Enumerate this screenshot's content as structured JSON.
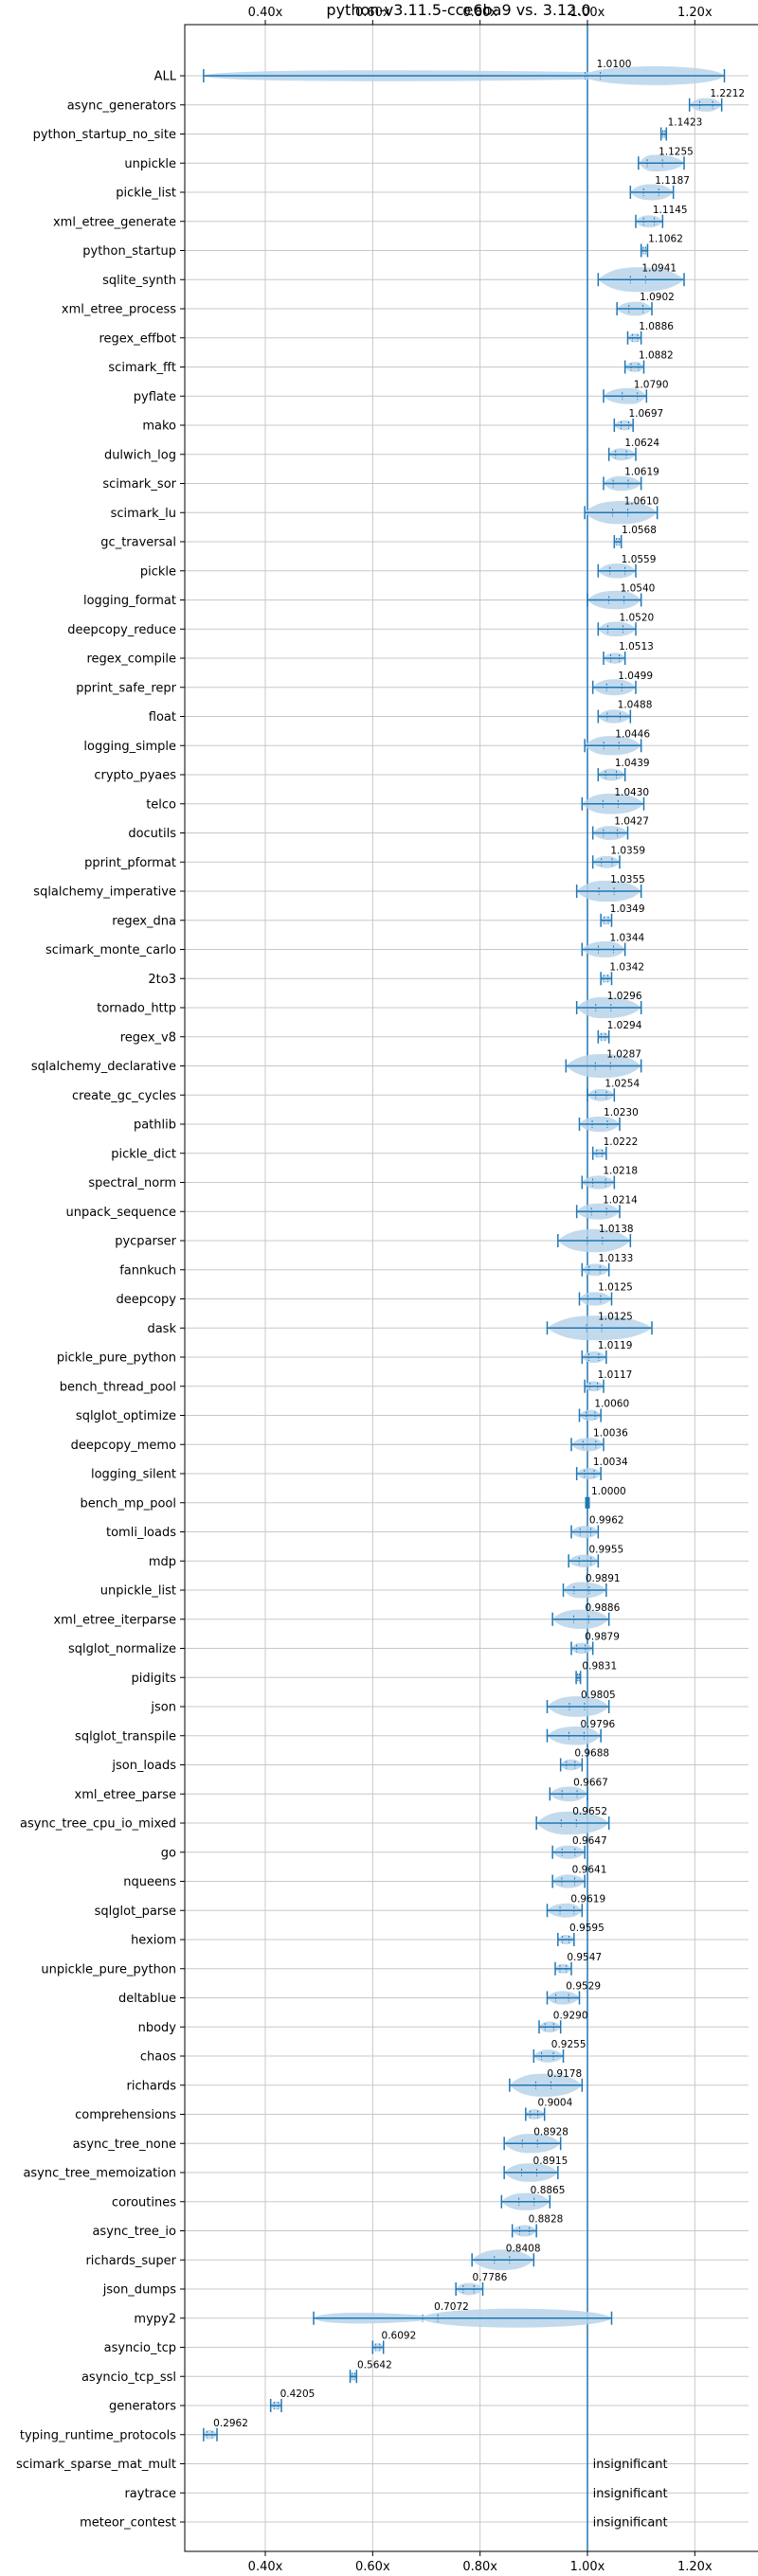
{
  "chart_data": {
    "type": "violin",
    "title": "python-v3.11.5-cce6ba9 vs. 3.12.0",
    "x_ticks": [
      0.4,
      0.6,
      0.8,
      1.0,
      1.2
    ],
    "x_tick_labels": [
      "0.40x",
      "0.60x",
      "0.80x",
      "1.00x",
      "1.20x"
    ],
    "xlim": [
      0.25,
      1.3
    ],
    "reference_line": 1.0,
    "grid": true,
    "colors": {
      "fill": "#b9d3ea",
      "line": "#1f77b4"
    },
    "benchmarks": [
      {
        "name": "ALL",
        "label": "1.0100",
        "median": 1.01,
        "lo": 0.285,
        "hi": 1.255,
        "whi": 1.16
      },
      {
        "name": "async_generators",
        "label": "1.2212",
        "median": 1.2212,
        "lo": 1.19,
        "hi": 1.25
      },
      {
        "name": "python_startup_no_site",
        "label": "1.1423",
        "median": 1.1423,
        "lo": 1.137,
        "hi": 1.147
      },
      {
        "name": "unpickle",
        "label": "1.1255",
        "median": 1.1255,
        "lo": 1.095,
        "hi": 1.18
      },
      {
        "name": "pickle_list",
        "label": "1.1187",
        "median": 1.1187,
        "lo": 1.08,
        "hi": 1.16
      },
      {
        "name": "xml_etree_generate",
        "label": "1.1145",
        "median": 1.1145,
        "lo": 1.09,
        "hi": 1.14
      },
      {
        "name": "python_startup",
        "label": "1.1062",
        "median": 1.1062,
        "lo": 1.1,
        "hi": 1.112
      },
      {
        "name": "sqlite_synth",
        "label": "1.0941",
        "median": 1.0941,
        "lo": 1.02,
        "hi": 1.18
      },
      {
        "name": "xml_etree_process",
        "label": "1.0902",
        "median": 1.0902,
        "lo": 1.055,
        "hi": 1.12
      },
      {
        "name": "regex_effbot",
        "label": "1.0886",
        "median": 1.0886,
        "lo": 1.075,
        "hi": 1.1
      },
      {
        "name": "scimark_fft",
        "label": "1.0882",
        "median": 1.0882,
        "lo": 1.07,
        "hi": 1.105
      },
      {
        "name": "pyflate",
        "label": "1.0790",
        "median": 1.079,
        "lo": 1.03,
        "hi": 1.11
      },
      {
        "name": "mako",
        "label": "1.0697",
        "median": 1.0697,
        "lo": 1.05,
        "hi": 1.085
      },
      {
        "name": "dulwich_log",
        "label": "1.0624",
        "median": 1.0624,
        "lo": 1.04,
        "hi": 1.09
      },
      {
        "name": "scimark_sor",
        "label": "1.0619",
        "median": 1.0619,
        "lo": 1.03,
        "hi": 1.1
      },
      {
        "name": "scimark_lu",
        "label": "1.0610",
        "median": 1.061,
        "lo": 0.995,
        "hi": 1.13
      },
      {
        "name": "gc_traversal",
        "label": "1.0568",
        "median": 1.0568,
        "lo": 1.05,
        "hi": 1.063
      },
      {
        "name": "pickle",
        "label": "1.0559",
        "median": 1.0559,
        "lo": 1.02,
        "hi": 1.09
      },
      {
        "name": "logging_format",
        "label": "1.0540",
        "median": 1.054,
        "lo": 1.0,
        "hi": 1.1
      },
      {
        "name": "deepcopy_reduce",
        "label": "1.0520",
        "median": 1.052,
        "lo": 1.02,
        "hi": 1.09
      },
      {
        "name": "regex_compile",
        "label": "1.0513",
        "median": 1.0513,
        "lo": 1.03,
        "hi": 1.07
      },
      {
        "name": "pprint_safe_repr",
        "label": "1.0499",
        "median": 1.0499,
        "lo": 1.01,
        "hi": 1.09
      },
      {
        "name": "float",
        "label": "1.0488",
        "median": 1.0488,
        "lo": 1.02,
        "hi": 1.08
      },
      {
        "name": "logging_simple",
        "label": "1.0446",
        "median": 1.0446,
        "lo": 0.995,
        "hi": 1.1
      },
      {
        "name": "crypto_pyaes",
        "label": "1.0439",
        "median": 1.0439,
        "lo": 1.02,
        "hi": 1.07
      },
      {
        "name": "telco",
        "label": "1.0430",
        "median": 1.043,
        "lo": 0.99,
        "hi": 1.105
      },
      {
        "name": "docutils",
        "label": "1.0427",
        "median": 1.0427,
        "lo": 1.01,
        "hi": 1.075
      },
      {
        "name": "pprint_pformat",
        "label": "1.0359",
        "median": 1.0359,
        "lo": 1.01,
        "hi": 1.06
      },
      {
        "name": "sqlalchemy_imperative",
        "label": "1.0355",
        "median": 1.0355,
        "lo": 0.98,
        "hi": 1.1
      },
      {
        "name": "regex_dna",
        "label": "1.0349",
        "median": 1.0349,
        "lo": 1.025,
        "hi": 1.045
      },
      {
        "name": "scimark_monte_carlo",
        "label": "1.0344",
        "median": 1.0344,
        "lo": 0.99,
        "hi": 1.07
      },
      {
        "name": "2to3",
        "label": "1.0342",
        "median": 1.0342,
        "lo": 1.025,
        "hi": 1.045
      },
      {
        "name": "tornado_http",
        "label": "1.0296",
        "median": 1.0296,
        "lo": 0.98,
        "hi": 1.1
      },
      {
        "name": "regex_v8",
        "label": "1.0294",
        "median": 1.0294,
        "lo": 1.02,
        "hi": 1.04
      },
      {
        "name": "sqlalchemy_declarative",
        "label": "1.0287",
        "median": 1.0287,
        "lo": 0.96,
        "hi": 1.1
      },
      {
        "name": "create_gc_cycles",
        "label": "1.0254",
        "median": 1.0254,
        "lo": 1.0,
        "hi": 1.05
      },
      {
        "name": "pathlib",
        "label": "1.0230",
        "median": 1.023,
        "lo": 0.985,
        "hi": 1.06
      },
      {
        "name": "pickle_dict",
        "label": "1.0222",
        "median": 1.0222,
        "lo": 1.01,
        "hi": 1.035
      },
      {
        "name": "spectral_norm",
        "label": "1.0218",
        "median": 1.0218,
        "lo": 0.99,
        "hi": 1.05
      },
      {
        "name": "unpack_sequence",
        "label": "1.0214",
        "median": 1.0214,
        "lo": 0.98,
        "hi": 1.06
      },
      {
        "name": "pycparser",
        "label": "1.0138",
        "median": 1.0138,
        "lo": 0.945,
        "hi": 1.08
      },
      {
        "name": "fannkuch",
        "label": "1.0133",
        "median": 1.0133,
        "lo": 0.99,
        "hi": 1.04
      },
      {
        "name": "deepcopy",
        "label": "1.0125",
        "median": 1.0125,
        "lo": 0.985,
        "hi": 1.045
      },
      {
        "name": "dask",
        "label": "1.0125",
        "median": 1.0125,
        "lo": 0.925,
        "hi": 1.12
      },
      {
        "name": "pickle_pure_python",
        "label": "1.0119",
        "median": 1.0119,
        "lo": 0.99,
        "hi": 1.035
      },
      {
        "name": "bench_thread_pool",
        "label": "1.0117",
        "median": 1.0117,
        "lo": 0.995,
        "hi": 1.03
      },
      {
        "name": "sqlglot_optimize",
        "label": "1.0060",
        "median": 1.006,
        "lo": 0.985,
        "hi": 1.025
      },
      {
        "name": "deepcopy_memo",
        "label": "1.0036",
        "median": 1.0036,
        "lo": 0.97,
        "hi": 1.03
      },
      {
        "name": "logging_silent",
        "label": "1.0034",
        "median": 1.0034,
        "lo": 0.98,
        "hi": 1.025
      },
      {
        "name": "bench_mp_pool",
        "label": "1.0000",
        "median": 1.0,
        "lo": 1.0,
        "hi": 1.0
      },
      {
        "name": "tomli_loads",
        "label": "0.9962",
        "median": 0.9962,
        "lo": 0.97,
        "hi": 1.02
      },
      {
        "name": "mdp",
        "label": "0.9955",
        "median": 0.9955,
        "lo": 0.965,
        "hi": 1.02
      },
      {
        "name": "unpickle_list",
        "label": "0.9891",
        "median": 0.9891,
        "lo": 0.955,
        "hi": 1.035
      },
      {
        "name": "xml_etree_iterparse",
        "label": "0.9886",
        "median": 0.9886,
        "lo": 0.935,
        "hi": 1.04
      },
      {
        "name": "sqlglot_normalize",
        "label": "0.9879",
        "median": 0.9879,
        "lo": 0.97,
        "hi": 1.01
      },
      {
        "name": "pidigits",
        "label": "0.9831",
        "median": 0.9831,
        "lo": 0.979,
        "hi": 0.987
      },
      {
        "name": "json",
        "label": "0.9805",
        "median": 0.9805,
        "lo": 0.925,
        "hi": 1.04
      },
      {
        "name": "sqlglot_transpile",
        "label": "0.9796",
        "median": 0.9796,
        "lo": 0.925,
        "hi": 1.025
      },
      {
        "name": "json_loads",
        "label": "0.9688",
        "median": 0.9688,
        "lo": 0.95,
        "hi": 0.99
      },
      {
        "name": "xml_etree_parse",
        "label": "0.9667",
        "median": 0.9667,
        "lo": 0.93,
        "hi": 1.0
      },
      {
        "name": "async_tree_cpu_io_mixed",
        "label": "0.9652",
        "median": 0.9652,
        "lo": 0.905,
        "hi": 1.04
      },
      {
        "name": "go",
        "label": "0.9647",
        "median": 0.9647,
        "lo": 0.935,
        "hi": 0.995
      },
      {
        "name": "nqueens",
        "label": "0.9641",
        "median": 0.9641,
        "lo": 0.935,
        "hi": 0.995
      },
      {
        "name": "sqlglot_parse",
        "label": "0.9619",
        "median": 0.9619,
        "lo": 0.925,
        "hi": 0.99
      },
      {
        "name": "hexiom",
        "label": "0.9595",
        "median": 0.9595,
        "lo": 0.945,
        "hi": 0.975
      },
      {
        "name": "unpickle_pure_python",
        "label": "0.9547",
        "median": 0.9547,
        "lo": 0.94,
        "hi": 0.97
      },
      {
        "name": "deltablue",
        "label": "0.9529",
        "median": 0.9529,
        "lo": 0.925,
        "hi": 0.985
      },
      {
        "name": "nbody",
        "label": "0.9290",
        "median": 0.929,
        "lo": 0.91,
        "hi": 0.95
      },
      {
        "name": "chaos",
        "label": "0.9255",
        "median": 0.9255,
        "lo": 0.9,
        "hi": 0.955
      },
      {
        "name": "richards",
        "label": "0.9178",
        "median": 0.9178,
        "lo": 0.855,
        "hi": 0.99
      },
      {
        "name": "comprehensions",
        "label": "0.9004",
        "median": 0.9004,
        "lo": 0.885,
        "hi": 0.92
      },
      {
        "name": "async_tree_none",
        "label": "0.8928",
        "median": 0.8928,
        "lo": 0.845,
        "hi": 0.95
      },
      {
        "name": "async_tree_memoization",
        "label": "0.8915",
        "median": 0.8915,
        "lo": 0.845,
        "hi": 0.945
      },
      {
        "name": "coroutines",
        "label": "0.8865",
        "median": 0.8865,
        "lo": 0.84,
        "hi": 0.93
      },
      {
        "name": "async_tree_io",
        "label": "0.8828",
        "median": 0.8828,
        "lo": 0.86,
        "hi": 0.905
      },
      {
        "name": "richards_super",
        "label": "0.8408",
        "median": 0.8408,
        "lo": 0.785,
        "hi": 0.9
      },
      {
        "name": "json_dumps",
        "label": "0.7786",
        "median": 0.7786,
        "lo": 0.755,
        "hi": 0.805
      },
      {
        "name": "mypy2",
        "label": "0.7072",
        "median": 0.7072,
        "lo": 0.49,
        "hi": 1.045,
        "whi": 0.71
      },
      {
        "name": "asyncio_tcp",
        "label": "0.6092",
        "median": 0.6092,
        "lo": 0.6,
        "hi": 0.62
      },
      {
        "name": "asyncio_tcp_ssl",
        "label": "0.5642",
        "median": 0.5642,
        "lo": 0.558,
        "hi": 0.57
      },
      {
        "name": "generators",
        "label": "0.4205",
        "median": 0.4205,
        "lo": 0.41,
        "hi": 0.43
      },
      {
        "name": "typing_runtime_protocols",
        "label": "0.2962",
        "median": 0.2962,
        "lo": 0.285,
        "hi": 0.31
      },
      {
        "name": "scimark_sparse_mat_mult",
        "insignificant": true,
        "label": "insignificant"
      },
      {
        "name": "raytrace",
        "insignificant": true,
        "label": "insignificant"
      },
      {
        "name": "meteor_contest",
        "insignificant": true,
        "label": "insignificant"
      }
    ]
  }
}
